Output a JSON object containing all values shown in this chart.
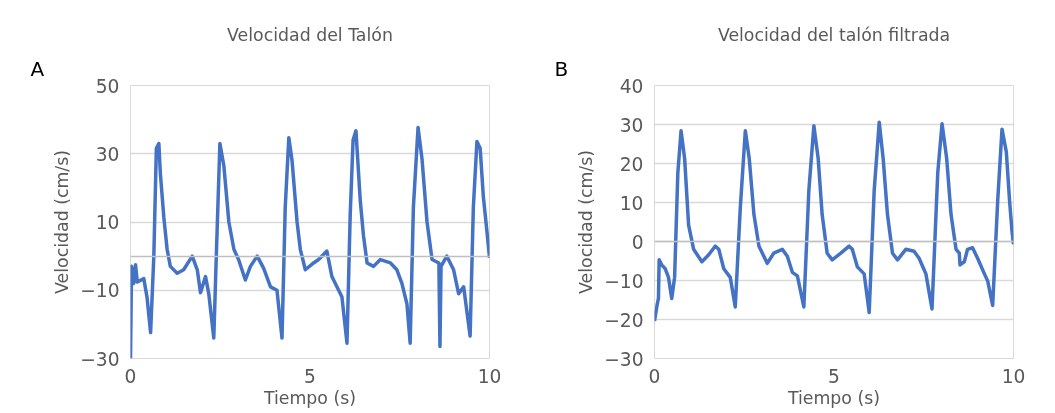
{
  "chart_data": [
    {
      "type": "line",
      "title": "Velocidad del Talón",
      "xlabel": "Tiempo (s)",
      "ylabel": "Velocidad (cm/s)",
      "annotations": [
        "A"
      ],
      "xlim": [
        0,
        10
      ],
      "ylim": [
        -30,
        50
      ],
      "xticks": [
        0,
        5,
        10
      ],
      "yticks": [
        -30,
        -10,
        10,
        30,
        50
      ],
      "grid": true,
      "series": [
        {
          "color": "#4472c4",
          "x": [
            0,
            0.03,
            0.09,
            0.14,
            0.19,
            0.37,
            0.46,
            0.56,
            0.65,
            0.72,
            0.79,
            0.83,
            0.93,
            1.02,
            1.11,
            1.3,
            1.48,
            1.72,
            1.86,
            1.95,
            2.09,
            2.18,
            2.32,
            2.39,
            2.49,
            2.6,
            2.74,
            2.88,
            3.01,
            3.2,
            3.34,
            3.53,
            3.71,
            3.9,
            4.08,
            4.22,
            4.31,
            4.41,
            4.5,
            4.64,
            4.73,
            4.87,
            5.1,
            5.24,
            5.47,
            5.61,
            5.75,
            5.89,
            6.03,
            6.12,
            6.2,
            6.28,
            6.4,
            6.49,
            6.59,
            6.77,
            6.96,
            7.24,
            7.42,
            7.56,
            7.7,
            7.79,
            7.88,
            8.01,
            8.12,
            8.26,
            8.4,
            8.59,
            8.62,
            8.65,
            8.81,
            9.0,
            9.14,
            9.28,
            9.46,
            9.55,
            9.65,
            9.74,
            9.83,
            9.93,
            10.0
          ],
          "values": [
            -30,
            -3,
            -8,
            -2.5,
            -7.6,
            -6.6,
            -12,
            -22.4,
            0,
            31.6,
            33,
            24.5,
            11.2,
            2,
            -3,
            -5,
            -4,
            0,
            -4,
            -10.7,
            -6,
            -11,
            -24,
            0,
            33,
            26.5,
            10,
            2,
            -1,
            -7,
            -3,
            0,
            -3.6,
            -9,
            -10,
            -24,
            14.3,
            34.7,
            28,
            10,
            2,
            -4,
            -2,
            -1,
            1.5,
            -6,
            -9,
            -12,
            -25.5,
            12.2,
            34,
            36.7,
            16.3,
            6,
            -2,
            -3,
            -1,
            -2,
            -4,
            -8,
            -14,
            -25.5,
            14.3,
            37.7,
            28.5,
            10,
            -1,
            -2,
            -26.5,
            -3,
            0,
            -4,
            -11,
            -9,
            -23.4,
            14.3,
            33.6,
            31.6,
            17.3,
            7.1,
            -0.5
          ]
        }
      ]
    },
    {
      "type": "line",
      "title": "Velocidad del talón filtrada",
      "xlabel": "Tiempo (s)",
      "ylabel": "Velocidad (cm/s)",
      "annotations": [
        "B"
      ],
      "xlim": [
        0,
        10
      ],
      "ylim": [
        -30,
        40
      ],
      "xticks": [
        0,
        5,
        10
      ],
      "yticks": [
        -30,
        -20,
        -10,
        0,
        10,
        20,
        30,
        40
      ],
      "grid": true,
      "series": [
        {
          "color": "#4472c4",
          "x": [
            0,
            0.07,
            0.11,
            0.13,
            0.2,
            0.3,
            0.39,
            0.48,
            0.56,
            0.65,
            0.74,
            0.84,
            0.95,
            1.09,
            1.32,
            1.51,
            1.69,
            1.79,
            1.93,
            2.11,
            2.25,
            2.39,
            2.53,
            2.64,
            2.77,
            2.91,
            3.14,
            3.32,
            3.56,
            3.7,
            3.84,
            3.98,
            4.16,
            4.3,
            4.44,
            4.56,
            4.67,
            4.81,
            4.95,
            5.19,
            5.42,
            5.51,
            5.65,
            5.84,
            5.98,
            6.12,
            6.26,
            6.37,
            6.49,
            6.63,
            6.77,
            7.0,
            7.23,
            7.37,
            7.56,
            7.73,
            7.89,
            8.01,
            8.14,
            8.26,
            8.4,
            8.49,
            8.51,
            8.63,
            8.72,
            8.86,
            9.0,
            9.19,
            9.28,
            9.42,
            9.56,
            9.68,
            9.8,
            9.89,
            9.96,
            10.0
          ],
          "values": [
            -20.4,
            -16.4,
            -14.6,
            -4.7,
            -6,
            -7,
            -9.2,
            -14.6,
            -9.2,
            17.6,
            28.4,
            21.2,
            4.2,
            -2,
            -5.2,
            -3.4,
            -1.2,
            -2,
            -7,
            -9.2,
            -16.8,
            8.7,
            28.4,
            21.2,
            6.9,
            -1.2,
            -5.6,
            -3,
            -2,
            -3.8,
            -7.9,
            -8.8,
            -16.8,
            13.2,
            29.7,
            21.2,
            6.9,
            -3,
            -4.7,
            -3,
            -1.2,
            -2,
            -6.5,
            -8.3,
            -18.2,
            13.2,
            30.6,
            21.2,
            6.9,
            -3,
            -4.7,
            -2,
            -2.5,
            -4.3,
            -8.3,
            -17.3,
            17.6,
            30.2,
            21.2,
            6.9,
            -2,
            -3,
            -6,
            -5.2,
            -2,
            -1.6,
            -4.3,
            -8.3,
            -10.1,
            -16.4,
            10.5,
            28.8,
            23,
            10.5,
            2.4,
            -0.7
          ]
        }
      ]
    }
  ]
}
